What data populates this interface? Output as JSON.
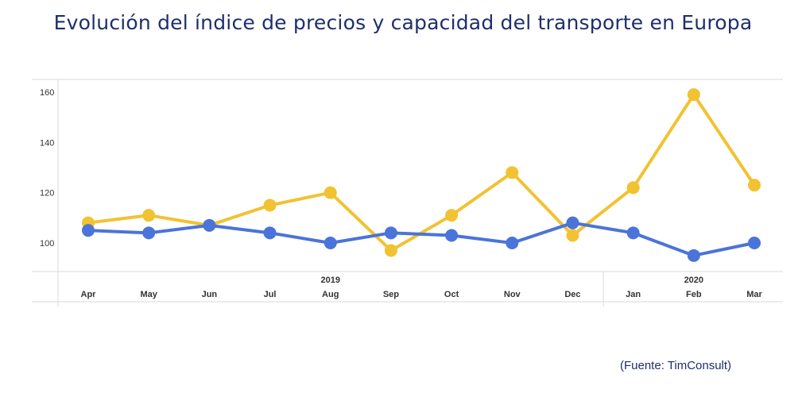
{
  "title": "Evolución del índice de precios y capacidad del transporte en Europa",
  "source": "(Fuente: TimConsult)",
  "colors": {
    "yellow": "#f1c232",
    "blue": "#4a74d9",
    "title": "#1f2f6b",
    "grid": "#e0e0e0"
  },
  "chart_data": {
    "type": "line",
    "title": "Evolución del índice de precios y capacidad del transporte en Europa",
    "xlabel": "",
    "ylabel": "",
    "ylim": [
      90,
      160
    ],
    "yticks": [
      100,
      120,
      140,
      160
    ],
    "grid": false,
    "legend": "none",
    "year_labels": [
      {
        "label": "2019",
        "month": "Aug"
      },
      {
        "label": "2020",
        "month": "Feb"
      }
    ],
    "categories": [
      "Apr",
      "May",
      "Jun",
      "Jul",
      "Aug",
      "Sep",
      "Oct",
      "Nov",
      "Dec",
      "Jan",
      "Feb",
      "Mar"
    ],
    "series": [
      {
        "color": "#f1c232",
        "values": [
          108,
          111,
          107,
          115,
          120,
          97,
          111,
          128,
          103,
          122,
          159,
          123
        ]
      },
      {
        "color": "#4a74d9",
        "values": [
          105,
          104,
          107,
          104,
          100,
          104,
          103,
          100,
          108,
          104,
          95,
          100
        ]
      }
    ]
  }
}
